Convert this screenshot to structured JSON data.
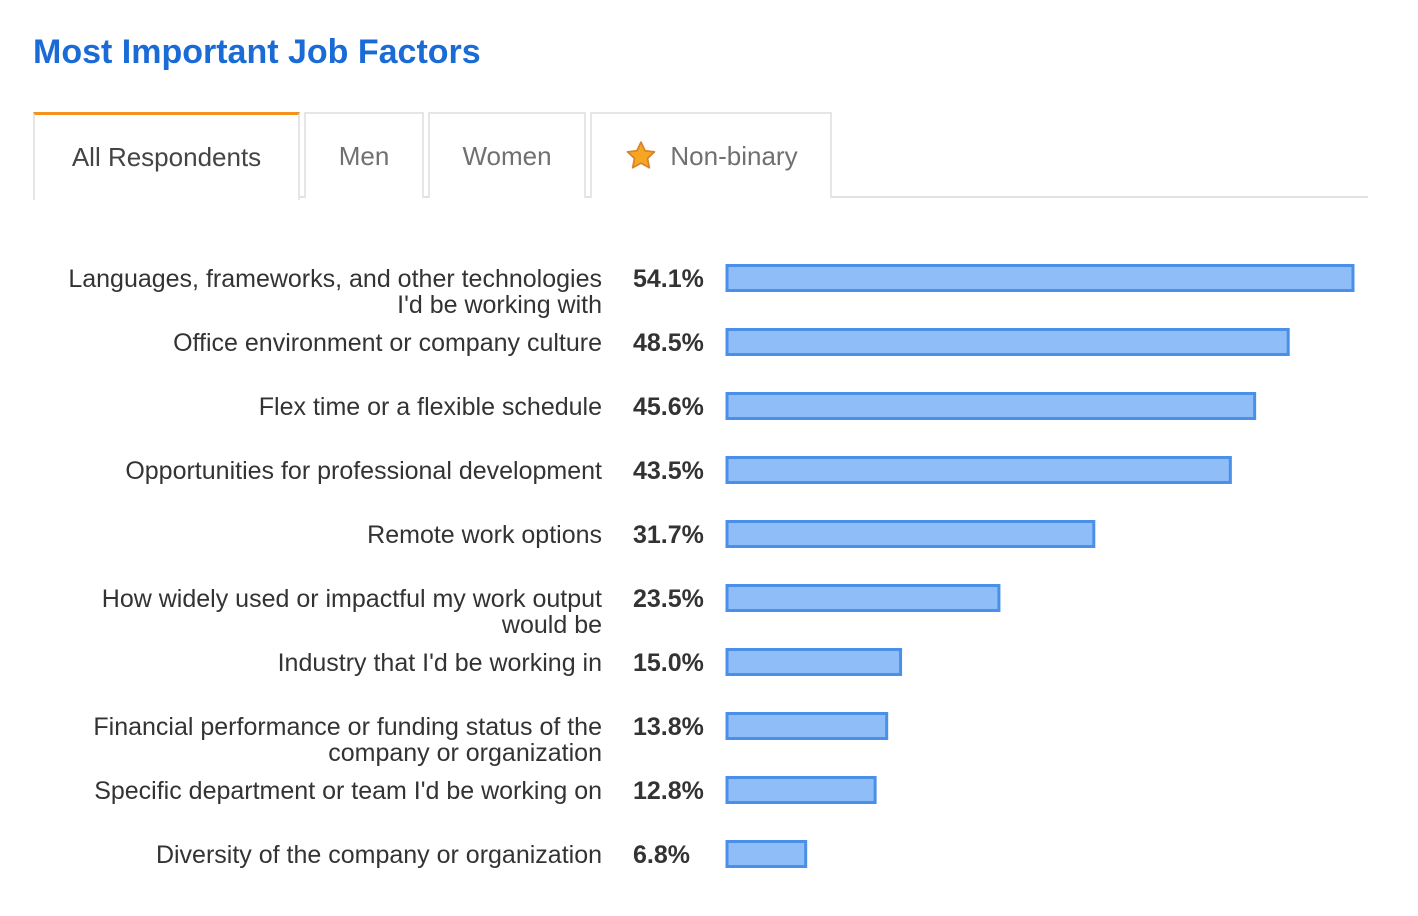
{
  "header": {
    "title": "Most Important Job Factors"
  },
  "tabs": [
    {
      "label": "All Respondents",
      "active": true
    },
    {
      "label": "Men",
      "active": false
    },
    {
      "label": "Women",
      "active": false
    },
    {
      "label": "Non-binary",
      "active": false,
      "icon": "star-icon"
    }
  ],
  "colors": {
    "title": "#1a6bd6",
    "active_tab_accent": "#f4921e",
    "bar_fill": "#8fbdf7",
    "bar_stroke": "#4a90e8",
    "star": "#f6a623"
  },
  "chart_data": {
    "type": "bar",
    "orientation": "horizontal",
    "categories": [
      [
        "Languages, frameworks, and other technologies",
        "I'd be working with"
      ],
      [
        "Office environment or company culture"
      ],
      [
        "Flex time or a flexible schedule"
      ],
      [
        "Opportunities for professional development"
      ],
      [
        "Remote work options"
      ],
      [
        "How widely used or impactful my work output",
        "would be"
      ],
      [
        "Industry that I'd be working in"
      ],
      [
        "Financial performance or funding status of the",
        "company or organization"
      ],
      [
        "Specific department or team I'd be working on"
      ],
      [
        "Diversity of the company or organization"
      ]
    ],
    "values": [
      54.1,
      48.5,
      45.6,
      43.5,
      31.7,
      23.5,
      15.0,
      13.8,
      12.8,
      6.8
    ],
    "value_labels": [
      "54.1%",
      "48.5%",
      "45.6%",
      "43.5%",
      "31.7%",
      "23.5%",
      "15.0%",
      "13.8%",
      "12.8%",
      "6.8%"
    ],
    "title": "",
    "xlabel": "",
    "ylabel": "",
    "xlim": [
      0,
      54.1
    ],
    "grid": false,
    "legend": "none"
  }
}
